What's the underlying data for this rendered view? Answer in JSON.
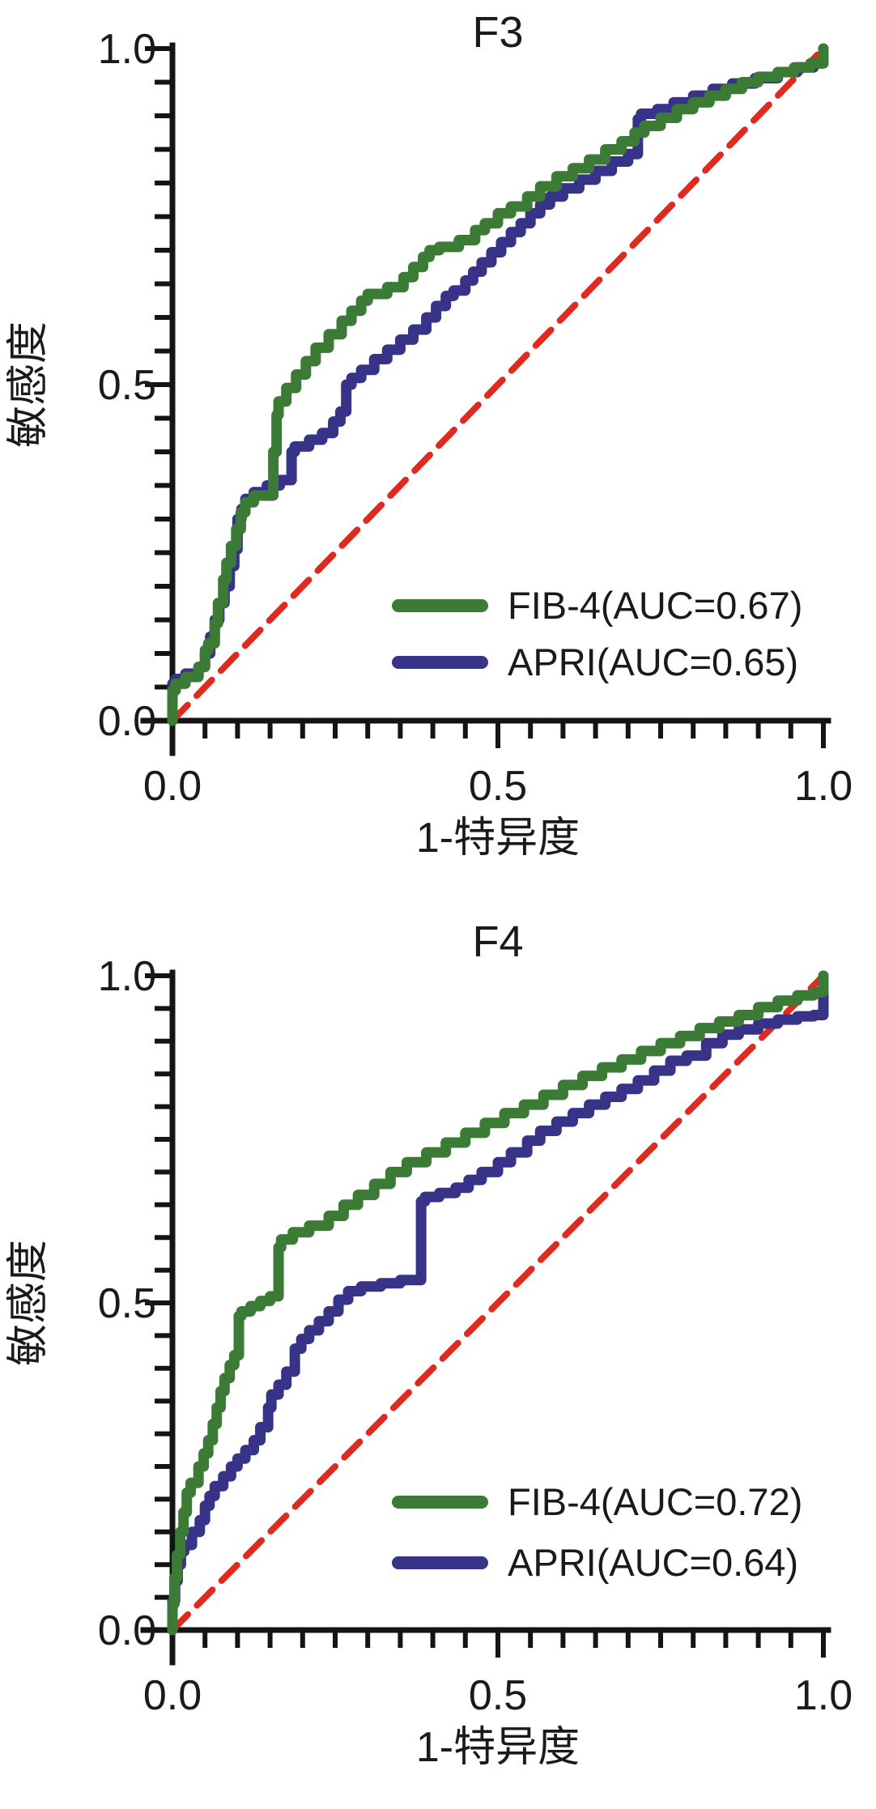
{
  "colors": {
    "fib4": "#3c7b35",
    "apri": "#373389",
    "diagonal": "#de2a1f",
    "axis": "#141414",
    "text": "#1a1a1a"
  },
  "chart_data": [
    {
      "type": "line",
      "subtype": "roc-curve",
      "title": "F3",
      "xlabel": "1-特异度",
      "ylabel": "敏感度",
      "xlim": [
        0,
        1
      ],
      "ylim": [
        0,
        1
      ],
      "grid": false,
      "legend_position": "lower right",
      "x_tick_values": [
        0,
        0.5,
        1
      ],
      "x_tick_labels": [
        "0.0",
        "0.5",
        "1.0"
      ],
      "y_tick_values": [
        0,
        0.5,
        1
      ],
      "y_tick_labels": [
        "0.0",
        "0.5",
        "1.0"
      ],
      "minor_tick_step": 0.05,
      "series": [
        {
          "key": "fib4",
          "name": "FIB-4(AUC=0.67)",
          "auc": 0.67,
          "color_key": "fib4",
          "style": "solid",
          "step": true,
          "points": [
            [
              0,
              0
            ],
            [
              0.005,
              0.045
            ],
            [
              0.02,
              0.055
            ],
            [
              0.04,
              0.065
            ],
            [
              0.05,
              0.08
            ],
            [
              0.055,
              0.105
            ],
            [
              0.065,
              0.115
            ],
            [
              0.07,
              0.145
            ],
            [
              0.078,
              0.175
            ],
            [
              0.083,
              0.21
            ],
            [
              0.09,
              0.235
            ],
            [
              0.098,
              0.26
            ],
            [
              0.105,
              0.285
            ],
            [
              0.112,
              0.31
            ],
            [
              0.125,
              0.325
            ],
            [
              0.155,
              0.335
            ],
            [
              0.16,
              0.4
            ],
            [
              0.163,
              0.455
            ],
            [
              0.175,
              0.475
            ],
            [
              0.19,
              0.495
            ],
            [
              0.205,
              0.515
            ],
            [
              0.22,
              0.535
            ],
            [
              0.24,
              0.555
            ],
            [
              0.26,
              0.575
            ],
            [
              0.275,
              0.595
            ],
            [
              0.29,
              0.61
            ],
            [
              0.3,
              0.625
            ],
            [
              0.33,
              0.635
            ],
            [
              0.355,
              0.645
            ],
            [
              0.37,
              0.66
            ],
            [
              0.385,
              0.675
            ],
            [
              0.395,
              0.69
            ],
            [
              0.41,
              0.7
            ],
            [
              0.44,
              0.705
            ],
            [
              0.465,
              0.715
            ],
            [
              0.48,
              0.73
            ],
            [
              0.5,
              0.74
            ],
            [
              0.52,
              0.755
            ],
            [
              0.545,
              0.765
            ],
            [
              0.565,
              0.78
            ],
            [
              0.59,
              0.795
            ],
            [
              0.615,
              0.81
            ],
            [
              0.64,
              0.822
            ],
            [
              0.665,
              0.835
            ],
            [
              0.69,
              0.85
            ],
            [
              0.71,
              0.862
            ],
            [
              0.725,
              0.875
            ],
            [
              0.75,
              0.885
            ],
            [
              0.775,
              0.897
            ],
            [
              0.8,
              0.91
            ],
            [
              0.825,
              0.92
            ],
            [
              0.85,
              0.93
            ],
            [
              0.875,
              0.94
            ],
            [
              0.9,
              0.95
            ],
            [
              0.93,
              0.958
            ],
            [
              0.955,
              0.965
            ],
            [
              0.98,
              0.972
            ],
            [
              1,
              0.978
            ],
            [
              1,
              1
            ]
          ]
        },
        {
          "key": "apri",
          "name": "APRI(AUC=0.65)",
          "auc": 0.65,
          "color_key": "apri",
          "style": "solid",
          "step": true,
          "points": [
            [
              0,
              0
            ],
            [
              0.005,
              0.055
            ],
            [
              0.02,
              0.062
            ],
            [
              0.04,
              0.07
            ],
            [
              0.05,
              0.08
            ],
            [
              0.058,
              0.1
            ],
            [
              0.065,
              0.125
            ],
            [
              0.072,
              0.15
            ],
            [
              0.08,
              0.175
            ],
            [
              0.088,
              0.2
            ],
            [
              0.095,
              0.23
            ],
            [
              0.1,
              0.255
            ],
            [
              0.106,
              0.3
            ],
            [
              0.112,
              0.315
            ],
            [
              0.125,
              0.33
            ],
            [
              0.145,
              0.34
            ],
            [
              0.165,
              0.35
            ],
            [
              0.183,
              0.358
            ],
            [
              0.188,
              0.4
            ],
            [
              0.21,
              0.408
            ],
            [
              0.23,
              0.418
            ],
            [
              0.247,
              0.428
            ],
            [
              0.258,
              0.445
            ],
            [
              0.267,
              0.46
            ],
            [
              0.275,
              0.5
            ],
            [
              0.29,
              0.51
            ],
            [
              0.31,
              0.522
            ],
            [
              0.33,
              0.538
            ],
            [
              0.35,
              0.552
            ],
            [
              0.37,
              0.567
            ],
            [
              0.39,
              0.582
            ],
            [
              0.405,
              0.6
            ],
            [
              0.42,
              0.617
            ],
            [
              0.432,
              0.632
            ],
            [
              0.45,
              0.64
            ],
            [
              0.462,
              0.655
            ],
            [
              0.475,
              0.668
            ],
            [
              0.49,
              0.682
            ],
            [
              0.505,
              0.697
            ],
            [
              0.52,
              0.712
            ],
            [
              0.535,
              0.727
            ],
            [
              0.55,
              0.74
            ],
            [
              0.565,
              0.755
            ],
            [
              0.58,
              0.768
            ],
            [
              0.6,
              0.78
            ],
            [
              0.625,
              0.792
            ],
            [
              0.65,
              0.805
            ],
            [
              0.675,
              0.818
            ],
            [
              0.7,
              0.832
            ],
            [
              0.715,
              0.843
            ],
            [
              0.72,
              0.895
            ],
            [
              0.745,
              0.903
            ],
            [
              0.77,
              0.91
            ],
            [
              0.8,
              0.92
            ],
            [
              0.83,
              0.93
            ],
            [
              0.86,
              0.94
            ],
            [
              0.895,
              0.948
            ],
            [
              0.93,
              0.956
            ],
            [
              0.96,
              0.965
            ],
            [
              0.985,
              0.972
            ],
            [
              1,
              0.978
            ],
            [
              1,
              1
            ]
          ]
        },
        {
          "key": "diagonal",
          "color_key": "diagonal",
          "style": "dashed",
          "step": false,
          "points": [
            [
              0,
              0
            ],
            [
              1,
              1
            ]
          ]
        }
      ]
    },
    {
      "type": "line",
      "subtype": "roc-curve",
      "title": "F4",
      "xlabel": "1-特异度",
      "ylabel": "敏感度",
      "xlim": [
        0,
        1
      ],
      "ylim": [
        0,
        1
      ],
      "grid": false,
      "legend_position": "lower right",
      "x_tick_values": [
        0,
        0.5,
        1
      ],
      "x_tick_labels": [
        "0.0",
        "0.5",
        "1.0"
      ],
      "y_tick_values": [
        0,
        0.5,
        1
      ],
      "y_tick_labels": [
        "0.0",
        "0.5",
        "1.0"
      ],
      "minor_tick_step": 0.05,
      "series": [
        {
          "key": "fib4",
          "name": "FIB-4(AUC=0.72)",
          "auc": 0.72,
          "color_key": "fib4",
          "style": "solid",
          "step": true,
          "points": [
            [
              0,
              0
            ],
            [
              0.003,
              0.04
            ],
            [
              0.007,
              0.08
            ],
            [
              0.012,
              0.115
            ],
            [
              0.017,
              0.15
            ],
            [
              0.022,
              0.18
            ],
            [
              0.028,
              0.21
            ],
            [
              0.04,
              0.225
            ],
            [
              0.048,
              0.25
            ],
            [
              0.055,
              0.27
            ],
            [
              0.062,
              0.29
            ],
            [
              0.068,
              0.315
            ],
            [
              0.074,
              0.34
            ],
            [
              0.08,
              0.365
            ],
            [
              0.088,
              0.385
            ],
            [
              0.095,
              0.405
            ],
            [
              0.102,
              0.42
            ],
            [
              0.106,
              0.48
            ],
            [
              0.12,
              0.487
            ],
            [
              0.135,
              0.495
            ],
            [
              0.15,
              0.503
            ],
            [
              0.163,
              0.51
            ],
            [
              0.167,
              0.585
            ],
            [
              0.185,
              0.597
            ],
            [
              0.21,
              0.608
            ],
            [
              0.24,
              0.618
            ],
            [
              0.263,
              0.633
            ],
            [
              0.285,
              0.65
            ],
            [
              0.31,
              0.665
            ],
            [
              0.335,
              0.682
            ],
            [
              0.36,
              0.7
            ],
            [
              0.39,
              0.715
            ],
            [
              0.42,
              0.73
            ],
            [
              0.45,
              0.745
            ],
            [
              0.48,
              0.76
            ],
            [
              0.51,
              0.775
            ],
            [
              0.54,
              0.79
            ],
            [
              0.57,
              0.803
            ],
            [
              0.6,
              0.818
            ],
            [
              0.63,
              0.833
            ],
            [
              0.66,
              0.847
            ],
            [
              0.69,
              0.86
            ],
            [
              0.72,
              0.872
            ],
            [
              0.75,
              0.885
            ],
            [
              0.78,
              0.897
            ],
            [
              0.81,
              0.908
            ],
            [
              0.84,
              0.92
            ],
            [
              0.87,
              0.93
            ],
            [
              0.9,
              0.94
            ],
            [
              0.93,
              0.952
            ],
            [
              0.96,
              0.962
            ],
            [
              0.985,
              0.97
            ],
            [
              1,
              0.975
            ],
            [
              1,
              1
            ]
          ]
        },
        {
          "key": "apri",
          "name": "APRI(AUC=0.64)",
          "auc": 0.64,
          "color_key": "apri",
          "style": "solid",
          "step": true,
          "points": [
            [
              0,
              0
            ],
            [
              0.004,
              0.045
            ],
            [
              0.008,
              0.075
            ],
            [
              0.013,
              0.1
            ],
            [
              0.018,
              0.12
            ],
            [
              0.03,
              0.13
            ],
            [
              0.042,
              0.15
            ],
            [
              0.05,
              0.168
            ],
            [
              0.057,
              0.19
            ],
            [
              0.065,
              0.205
            ],
            [
              0.078,
              0.22
            ],
            [
              0.09,
              0.235
            ],
            [
              0.1,
              0.25
            ],
            [
              0.112,
              0.262
            ],
            [
              0.125,
              0.275
            ],
            [
              0.135,
              0.29
            ],
            [
              0.147,
              0.31
            ],
            [
              0.152,
              0.34
            ],
            [
              0.163,
              0.36
            ],
            [
              0.175,
              0.375
            ],
            [
              0.188,
              0.395
            ],
            [
              0.198,
              0.43
            ],
            [
              0.21,
              0.445
            ],
            [
              0.225,
              0.458
            ],
            [
              0.24,
              0.472
            ],
            [
              0.255,
              0.487
            ],
            [
              0.27,
              0.505
            ],
            [
              0.29,
              0.518
            ],
            [
              0.32,
              0.525
            ],
            [
              0.35,
              0.53
            ],
            [
              0.382,
              0.535
            ],
            [
              0.388,
              0.655
            ],
            [
              0.41,
              0.662
            ],
            [
              0.435,
              0.668
            ],
            [
              0.455,
              0.676
            ],
            [
              0.475,
              0.688
            ],
            [
              0.5,
              0.7
            ],
            [
              0.52,
              0.715
            ],
            [
              0.545,
              0.73
            ],
            [
              0.565,
              0.748
            ],
            [
              0.59,
              0.763
            ],
            [
              0.615,
              0.777
            ],
            [
              0.64,
              0.79
            ],
            [
              0.665,
              0.803
            ],
            [
              0.69,
              0.815
            ],
            [
              0.715,
              0.827
            ],
            [
              0.74,
              0.84
            ],
            [
              0.765,
              0.855
            ],
            [
              0.79,
              0.87
            ],
            [
              0.82,
              0.878
            ],
            [
              0.845,
              0.897
            ],
            [
              0.87,
              0.91
            ],
            [
              0.9,
              0.918
            ],
            [
              0.93,
              0.927
            ],
            [
              0.96,
              0.933
            ],
            [
              0.985,
              0.938
            ],
            [
              1,
              0.94
            ],
            [
              1,
              1
            ]
          ]
        },
        {
          "key": "diagonal",
          "color_key": "diagonal",
          "style": "dashed",
          "step": false,
          "points": [
            [
              0,
              0
            ],
            [
              1,
              1
            ]
          ]
        }
      ]
    }
  ]
}
